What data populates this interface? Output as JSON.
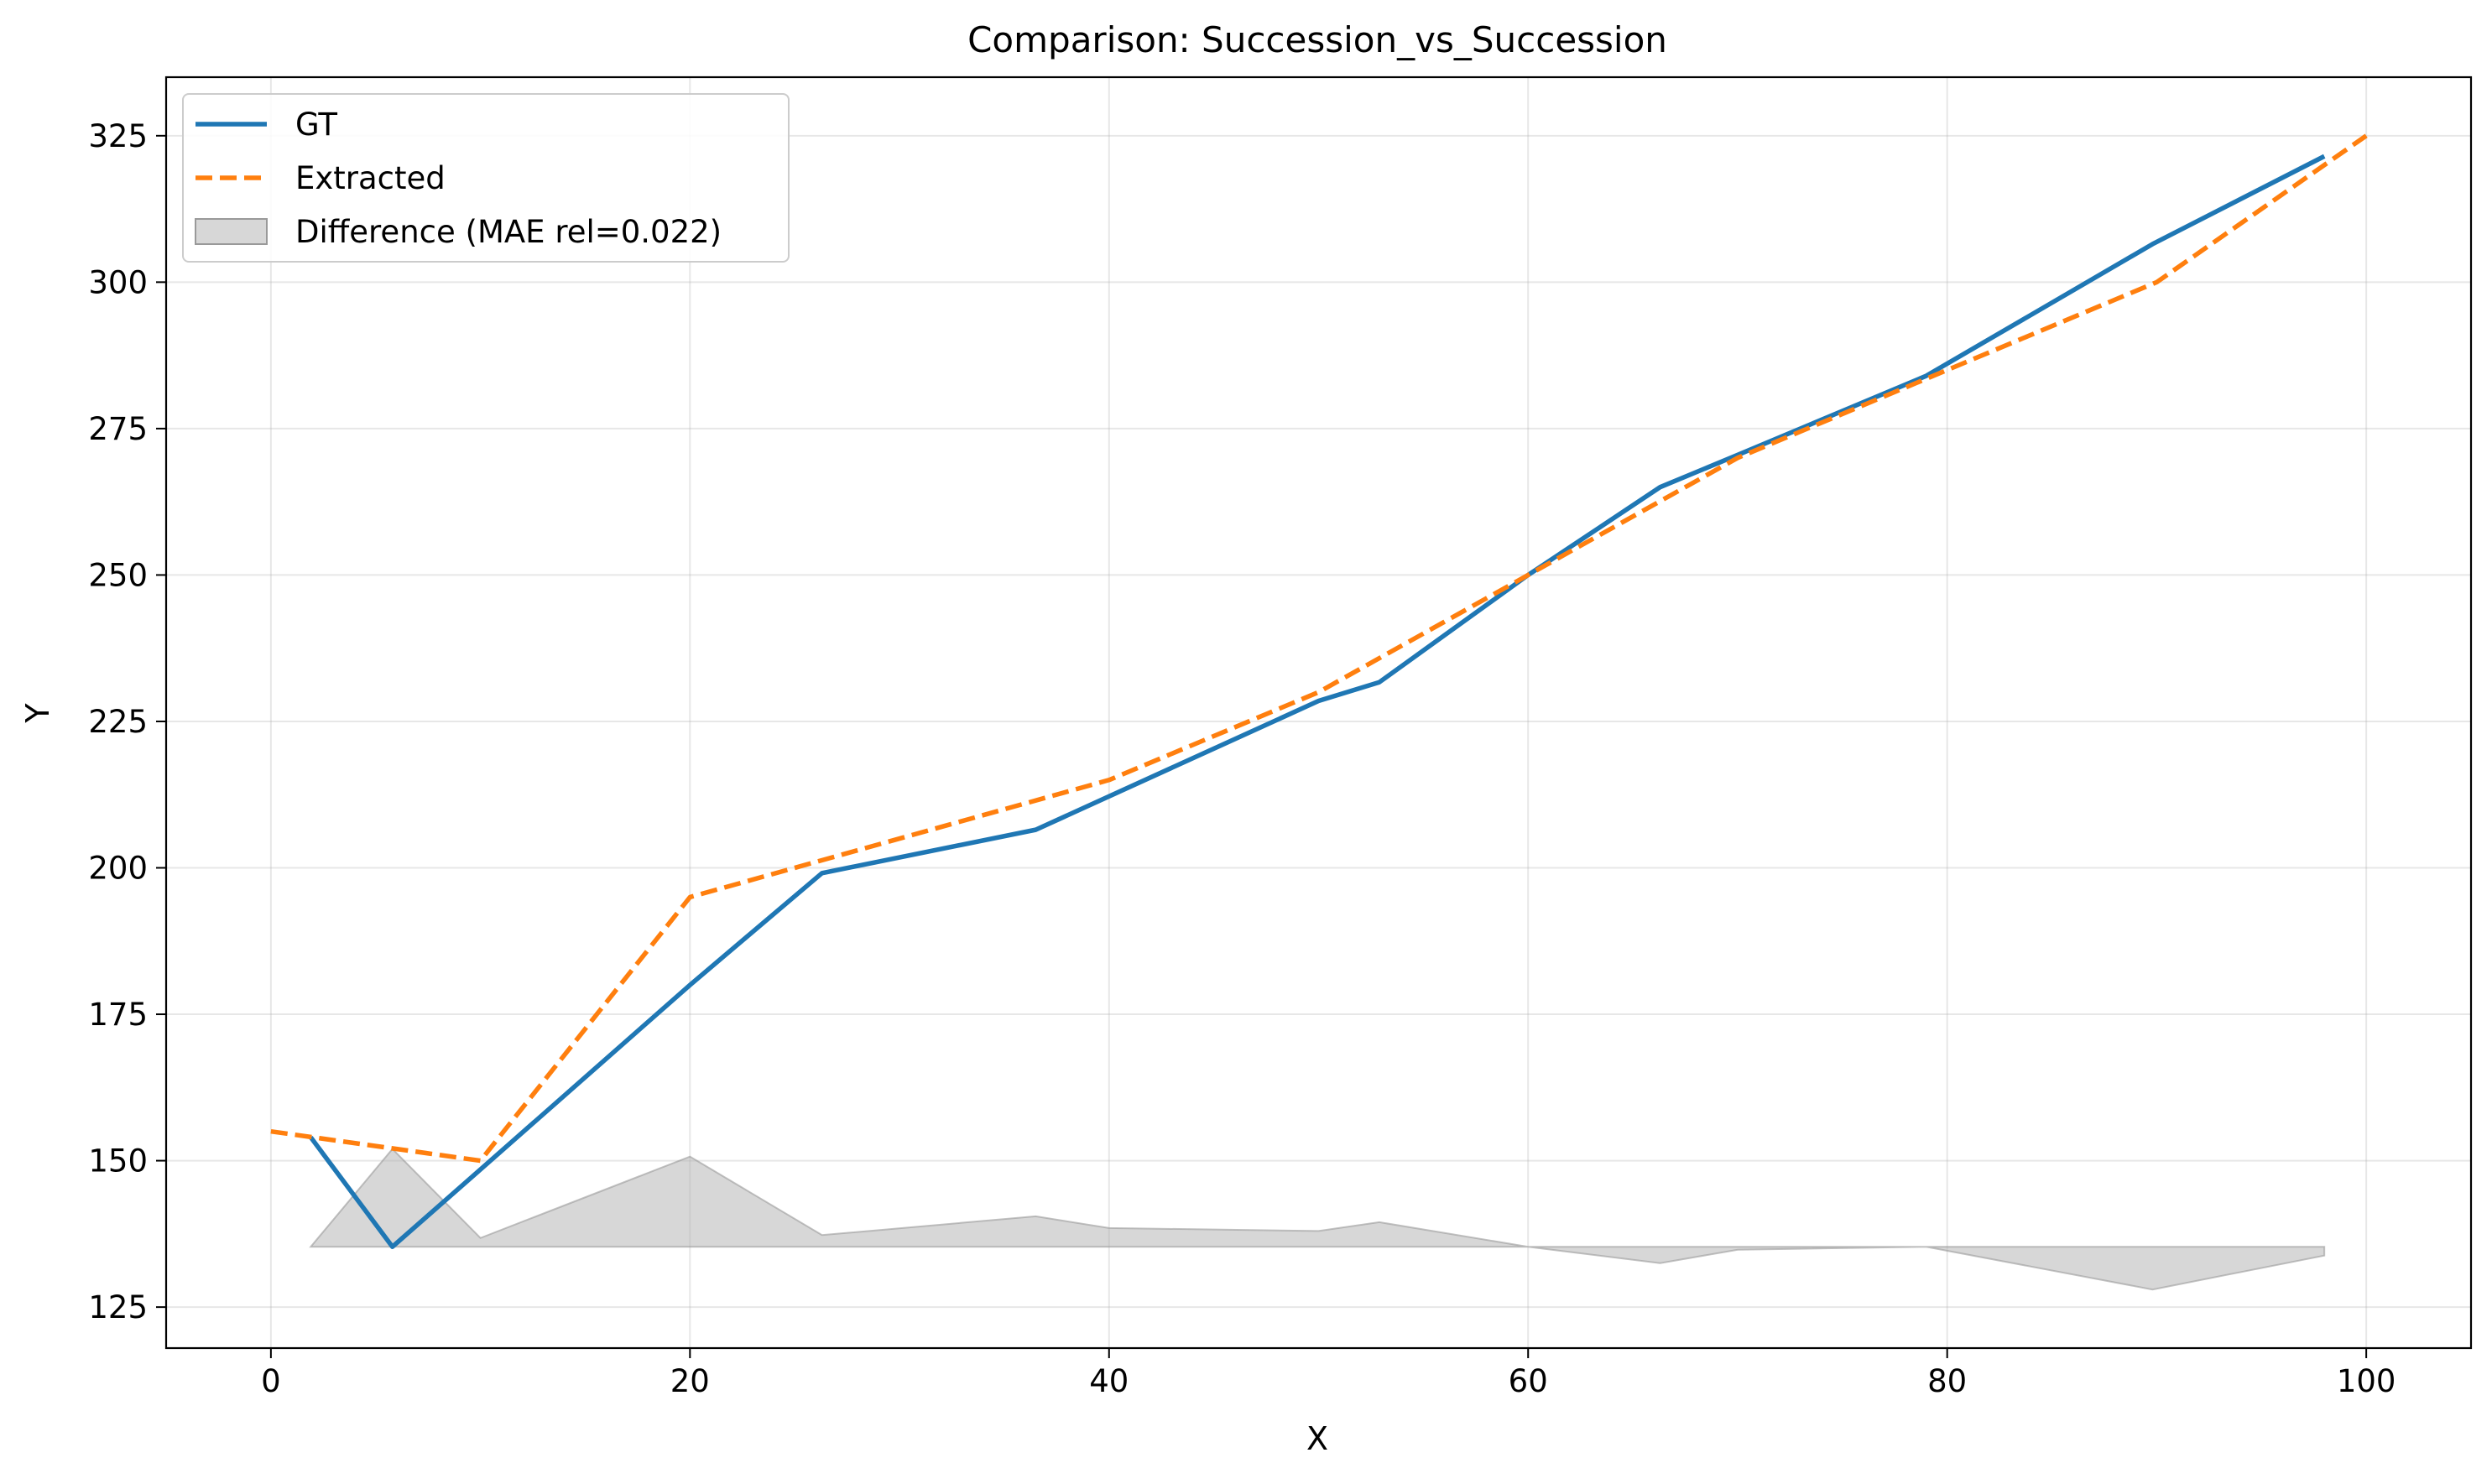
{
  "chart_data": {
    "type": "line",
    "title": "Comparison: Succession_vs_Succession",
    "xlabel": "X",
    "ylabel": "Y",
    "xlim": [
      -5,
      105
    ],
    "ylim": [
      118,
      335
    ],
    "xticks": [
      0,
      20,
      40,
      60,
      80,
      100
    ],
    "yticks": [
      125,
      150,
      175,
      200,
      225,
      250,
      275,
      300,
      325
    ],
    "grid": true,
    "legend_position": "top-left",
    "series": [
      {
        "name": "GT",
        "color": "#1f77b4",
        "style": "solid",
        "x": [
          1.9,
          5.8,
          10,
          20,
          26.3,
          36.5,
          50,
          52.9,
          60,
          66.3,
          70,
          79,
          89.8,
          98
        ],
        "y": [
          154,
          135.3,
          148.5,
          180,
          199.1,
          206.5,
          228.5,
          231.7,
          250,
          265,
          270.5,
          284,
          306.5,
          321.5
        ]
      },
      {
        "name": "Extracted",
        "color": "#ff7f0e",
        "style": "dashed",
        "x": [
          0,
          10,
          20,
          40,
          50,
          60,
          70,
          80,
          90,
          100
        ],
        "y": [
          155,
          150,
          195,
          215,
          230,
          250,
          270,
          285,
          300,
          325
        ]
      }
    ],
    "difference": {
      "name": "Difference (MAE rel=0.022)",
      "color": "#b0b0b0",
      "baseline": 135.3,
      "x": [
        1.9,
        5.8,
        10,
        20,
        26.3,
        36.5,
        40,
        50,
        52.9,
        60,
        66.3,
        70,
        79,
        89.8,
        98
      ],
      "y": [
        135.3,
        152,
        136.8,
        150.7,
        137.3,
        140.5,
        138.5,
        138,
        139.5,
        135.3,
        132.5,
        134.8,
        135.3,
        128,
        133.8
      ]
    }
  }
}
